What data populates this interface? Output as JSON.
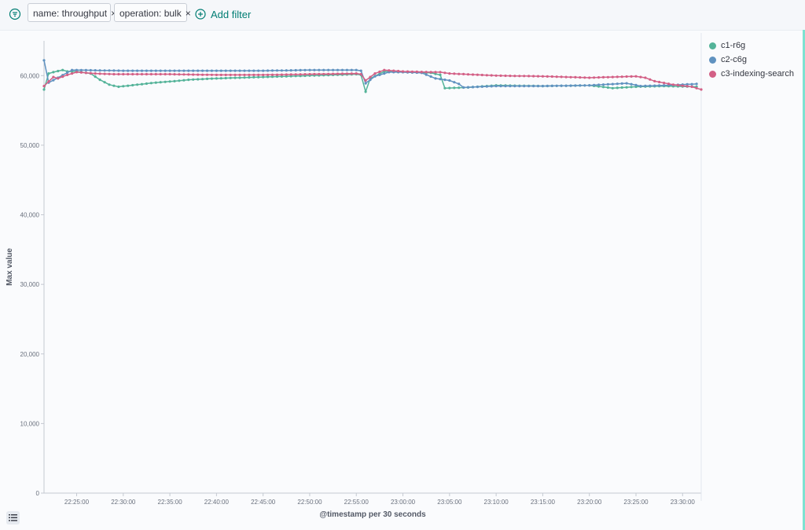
{
  "filters": {
    "items": [
      {
        "label": "name: throughput",
        "close": "×"
      },
      {
        "label": "operation: bulk",
        "close": "×"
      }
    ],
    "add_label": "Add filter"
  },
  "colors": {
    "accent": "#017d73",
    "c1": "#54b399",
    "c2": "#6092c0",
    "c3": "#d36086"
  },
  "chart_data": {
    "type": "line",
    "xlabel": "@timestamp per 30 seconds",
    "ylabel": "Max value",
    "ylim": [
      0,
      65000
    ],
    "yticks": [
      0,
      10000,
      20000,
      30000,
      40000,
      50000,
      60000
    ],
    "ytick_labels": [
      "0",
      "10,000",
      "20,000",
      "30,000",
      "40,000",
      "50,000",
      "60,000"
    ],
    "xlim": [
      "22:21:30",
      "23:32:00"
    ],
    "xtick_labels": [
      "22:25:00",
      "22:30:00",
      "22:35:00",
      "22:40:00",
      "22:45:00",
      "22:50:00",
      "22:55:00",
      "23:00:00",
      "23:05:00",
      "23:10:00",
      "23:15:00",
      "23:20:00",
      "23:25:00",
      "23:30:00"
    ],
    "interval": "30 seconds",
    "grid": false,
    "legend": "right",
    "series": [
      {
        "name": "c1-r6g",
        "color": "#54b399",
        "start": "22:21:30",
        "end": "23:31:30",
        "keypoints": [
          [
            "22:21:30",
            58000
          ],
          [
            "22:22:00",
            60300
          ],
          [
            "22:22:30",
            60500
          ],
          [
            "22:23:30",
            60800
          ],
          [
            "22:24:00",
            60600
          ],
          [
            "22:25:00",
            60600
          ],
          [
            "22:26:30",
            60300
          ],
          [
            "22:27:30",
            59400
          ],
          [
            "22:28:30",
            58700
          ],
          [
            "22:29:30",
            58400
          ],
          [
            "22:31:30",
            58700
          ],
          [
            "22:33:30",
            59000
          ],
          [
            "22:35:30",
            59200
          ],
          [
            "22:37:00",
            59400
          ],
          [
            "22:40:00",
            59600
          ],
          [
            "22:45:00",
            59800
          ],
          [
            "22:50:00",
            60000
          ],
          [
            "22:55:00",
            60200
          ],
          [
            "22:55:30",
            60100
          ],
          [
            "22:56:00",
            57700
          ],
          [
            "22:56:30",
            59600
          ],
          [
            "22:58:00",
            60600
          ],
          [
            "23:00:00",
            60500
          ],
          [
            "23:03:00",
            60400
          ],
          [
            "23:04:00",
            60100
          ],
          [
            "23:04:30",
            58200
          ],
          [
            "23:07:00",
            58300
          ],
          [
            "23:10:00",
            58600
          ],
          [
            "23:15:00",
            58500
          ],
          [
            "23:20:00",
            58600
          ],
          [
            "23:22:30",
            58200
          ],
          [
            "23:25:00",
            58400
          ],
          [
            "23:28:00",
            58500
          ],
          [
            "23:31:30",
            58400
          ]
        ]
      },
      {
        "name": "c2-c6g",
        "color": "#6092c0",
        "start": "22:21:30",
        "end": "23:31:30",
        "keypoints": [
          [
            "22:21:30",
            62200
          ],
          [
            "22:22:00",
            59000
          ],
          [
            "22:23:00",
            59700
          ],
          [
            "22:24:30",
            60800
          ],
          [
            "22:25:00",
            60800
          ],
          [
            "22:30:00",
            60700
          ],
          [
            "22:35:00",
            60700
          ],
          [
            "22:40:00",
            60700
          ],
          [
            "22:45:00",
            60700
          ],
          [
            "22:50:00",
            60800
          ],
          [
            "22:55:00",
            60800
          ],
          [
            "22:55:30",
            60700
          ],
          [
            "22:56:00",
            58900
          ],
          [
            "22:57:00",
            59900
          ],
          [
            "22:58:30",
            60500
          ],
          [
            "23:00:00",
            60500
          ],
          [
            "23:02:00",
            60400
          ],
          [
            "23:03:30",
            59600
          ],
          [
            "23:05:00",
            59300
          ],
          [
            "23:06:00",
            58800
          ],
          [
            "23:06:30",
            58300
          ],
          [
            "23:10:00",
            58500
          ],
          [
            "23:15:00",
            58500
          ],
          [
            "23:20:00",
            58600
          ],
          [
            "23:24:00",
            58900
          ],
          [
            "23:25:30",
            58500
          ],
          [
            "23:28:00",
            58600
          ],
          [
            "23:31:30",
            58800
          ]
        ]
      },
      {
        "name": "c3-indexing-search",
        "color": "#d36086",
        "start": "22:21:30",
        "end": "23:32:00",
        "keypoints": [
          [
            "22:21:30",
            58500
          ],
          [
            "22:22:30",
            59800
          ],
          [
            "22:23:00",
            59600
          ],
          [
            "22:24:00",
            60100
          ],
          [
            "22:25:00",
            60500
          ],
          [
            "22:26:00",
            60400
          ],
          [
            "22:27:00",
            60300
          ],
          [
            "22:29:00",
            60200
          ],
          [
            "22:35:00",
            60200
          ],
          [
            "22:40:00",
            60100
          ],
          [
            "22:45:00",
            60100
          ],
          [
            "22:50:00",
            60200
          ],
          [
            "22:55:00",
            60300
          ],
          [
            "22:55:30",
            60200
          ],
          [
            "22:56:00",
            59300
          ],
          [
            "22:57:00",
            60300
          ],
          [
            "22:58:00",
            60800
          ],
          [
            "23:00:00",
            60600
          ],
          [
            "23:03:00",
            60500
          ],
          [
            "23:04:00",
            60500
          ],
          [
            "23:05:00",
            60300
          ],
          [
            "23:10:00",
            60000
          ],
          [
            "23:15:00",
            59900
          ],
          [
            "23:20:00",
            59700
          ],
          [
            "23:25:00",
            59900
          ],
          [
            "23:26:00",
            59700
          ],
          [
            "23:27:00",
            59200
          ],
          [
            "23:29:00",
            58700
          ],
          [
            "23:31:00",
            58400
          ],
          [
            "23:32:00",
            58000
          ]
        ]
      }
    ]
  }
}
